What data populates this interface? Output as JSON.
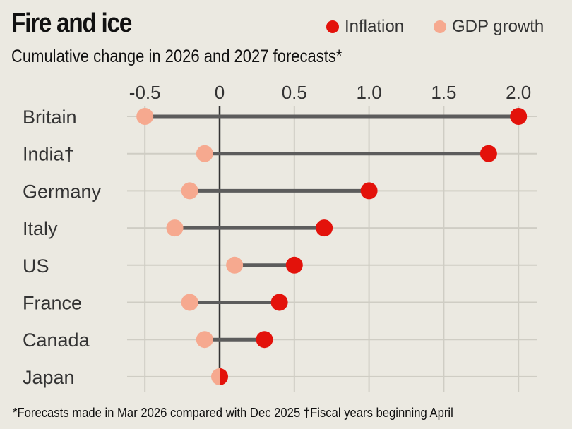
{
  "chart_data": {
    "type": "dumbbell",
    "title": "Fire and ice",
    "subtitle": "Cumulative change in 2026 and 2027 forecasts*",
    "xlim": [
      -0.5,
      2.0
    ],
    "xticks": [
      "-0.5",
      "0",
      "0.5",
      "1.0",
      "1.5",
      "2.0"
    ],
    "xtick_values": [
      -0.5,
      0,
      0.5,
      1.0,
      1.5,
      2.0
    ],
    "grid": true,
    "legend_placement": "top-right",
    "categories": [
      "Britain",
      "India†",
      "Germany",
      "Italy",
      "US",
      "France",
      "Canada",
      "Japan"
    ],
    "series": [
      {
        "name": "Inflation",
        "color": "#e3120b",
        "values": [
          2.0,
          1.8,
          1.0,
          0.7,
          0.5,
          0.4,
          0.3,
          0.0
        ]
      },
      {
        "name": "GDP growth",
        "color": "#f6a98f",
        "values": [
          -0.5,
          -0.1,
          -0.2,
          -0.3,
          0.1,
          -0.2,
          -0.1,
          0.0
        ]
      }
    ],
    "footnote": "*Forecasts made in Mar 2026 compared with Dec 2025   †Fiscal years beginning April"
  }
}
